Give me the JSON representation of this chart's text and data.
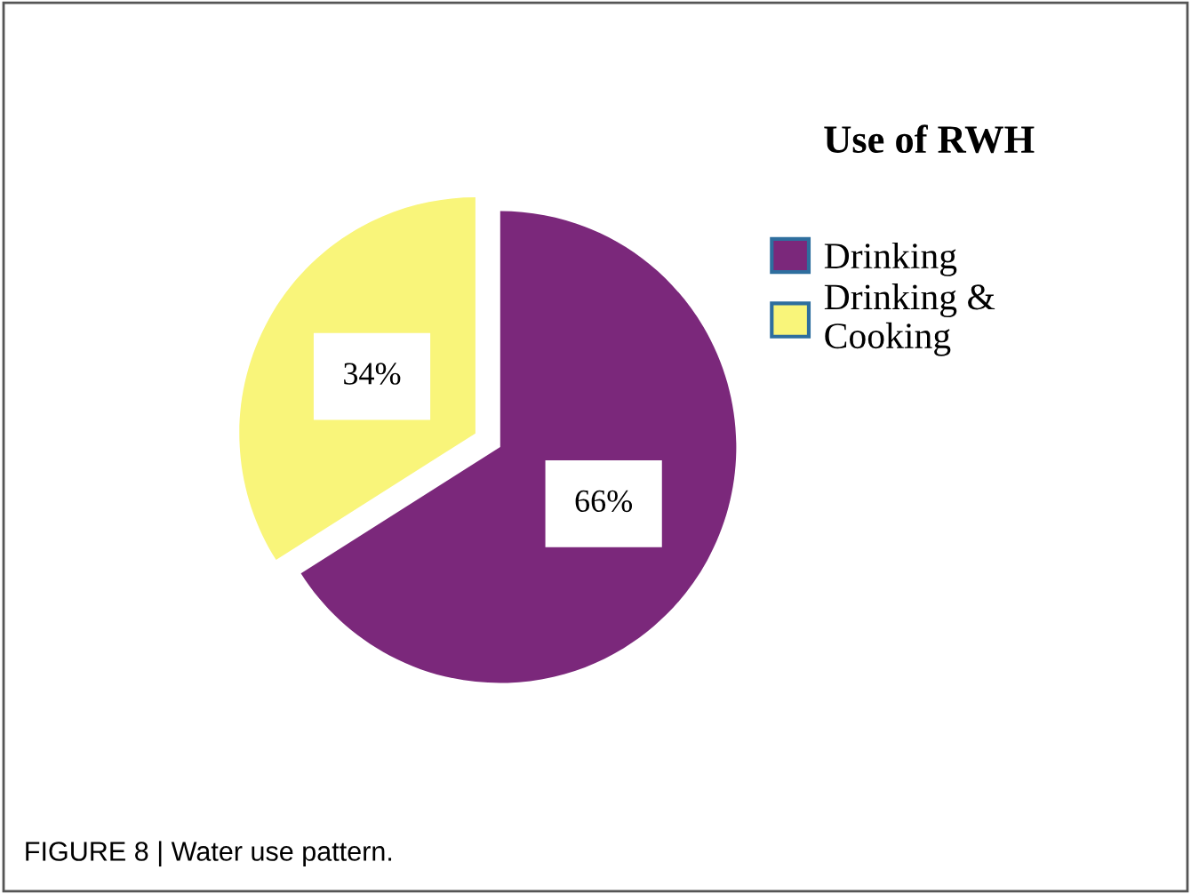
{
  "chart_data": {
    "type": "pie",
    "title": "Use of RWH",
    "categories": [
      "Drinking",
      "Drinking &\nCooking"
    ],
    "values": [
      66,
      34
    ],
    "colors": [
      "#7b287b",
      "#f9f57a"
    ],
    "value_labels": [
      "66%",
      "34%"
    ],
    "legend": "right",
    "annotations": [
      "FIGURE 8 | Water use pattern."
    ]
  }
}
